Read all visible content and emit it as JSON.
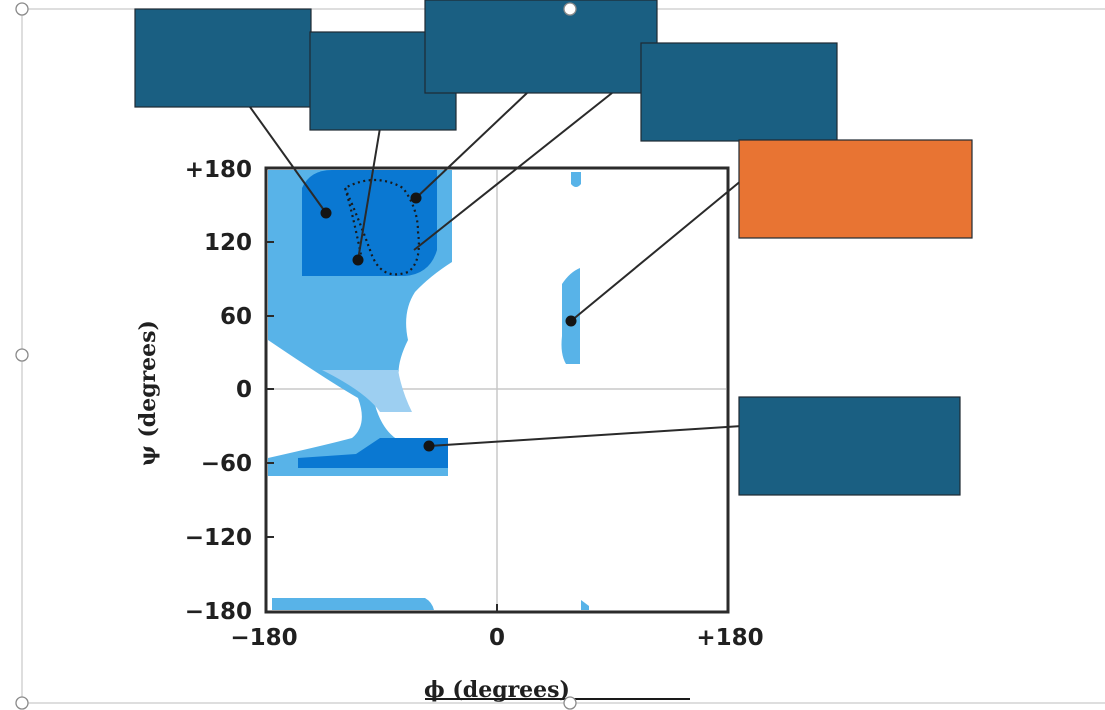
{
  "diagram": {
    "x_axis": {
      "title": "ϕ (degrees)",
      "ticks": [
        "−180",
        "0",
        "+180"
      ]
    },
    "y_axis": {
      "title": "ψ (degrees)",
      "ticks": [
        "+180",
        "120",
        "60",
        "0",
        "−60",
        "−120",
        "−180"
      ]
    },
    "label_boxes": [
      {
        "id": "box-1",
        "color": "#1a5f82",
        "text": ""
      },
      {
        "id": "box-2",
        "color": "#1a5f82",
        "text": ""
      },
      {
        "id": "box-3",
        "color": "#1a5f82",
        "text": ""
      },
      {
        "id": "box-4",
        "color": "#1a5f82",
        "text": ""
      },
      {
        "id": "box-5",
        "color": "#e87433",
        "text": ""
      },
      {
        "id": "box-6",
        "color": "#1a5f82",
        "text": ""
      }
    ],
    "region_colors": {
      "light": "#58b3e8",
      "pale": "#9dcff1",
      "dark": "#0a78d2"
    }
  }
}
